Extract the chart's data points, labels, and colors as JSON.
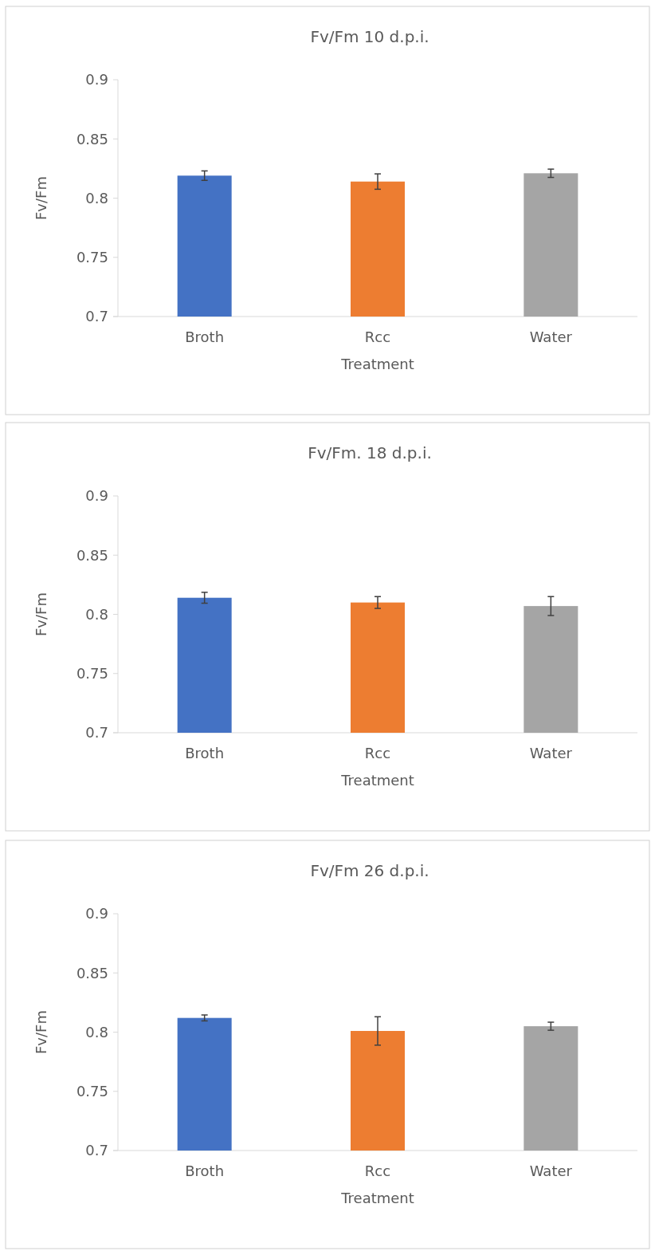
{
  "chart_data": [
    {
      "type": "bar",
      "title": "Fv/Fm 10 d.p.i.",
      "xlabel": "Treatment",
      "ylabel": "Fv/Fm",
      "categories": [
        "Broth",
        "Rcc",
        "Water"
      ],
      "values": [
        0.819,
        0.814,
        0.821
      ],
      "errors": [
        0.004,
        0.0065,
        0.0035
      ],
      "colors": [
        "#4472c4",
        "#ed7d31",
        "#a5a5a5"
      ],
      "ylim": [
        0.7,
        0.9
      ],
      "yticks": [
        0.7,
        0.75,
        0.8,
        0.85,
        0.9
      ],
      "grid": false
    },
    {
      "type": "bar",
      "title": "Fv/Fm. 18 d.p.i.",
      "xlabel": "Treatment",
      "ylabel": "Fv/Fm",
      "categories": [
        "Broth",
        "Rcc",
        "Water"
      ],
      "values": [
        0.814,
        0.81,
        0.807
      ],
      "errors": [
        0.0046,
        0.005,
        0.008
      ],
      "colors": [
        "#4472c4",
        "#ed7d31",
        "#a5a5a5"
      ],
      "ylim": [
        0.7,
        0.9
      ],
      "yticks": [
        0.7,
        0.75,
        0.8,
        0.85,
        0.9
      ],
      "grid": false
    },
    {
      "type": "bar",
      "title": "Fv/Fm 26 d.p.i.",
      "xlabel": "Treatment",
      "ylabel": "Fv/Fm",
      "categories": [
        "Broth",
        "Rcc",
        "Water"
      ],
      "values": [
        0.812,
        0.801,
        0.805
      ],
      "errors": [
        0.0025,
        0.012,
        0.0034
      ],
      "colors": [
        "#4472c4",
        "#ed7d31",
        "#a5a5a5"
      ],
      "ylim": [
        0.7,
        0.9
      ],
      "yticks": [
        0.7,
        0.75,
        0.8,
        0.85,
        0.9
      ],
      "grid": false
    }
  ]
}
